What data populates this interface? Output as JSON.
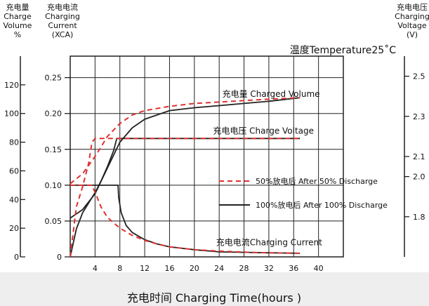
{
  "chart_data": {
    "type": "line",
    "annotation": "温度Temperature25˚C",
    "xlabel": "充电时间 Charging Time(hours )",
    "x_ticks": [
      4,
      8,
      12,
      16,
      20,
      24,
      28,
      32,
      36,
      40
    ],
    "xlim": [
      0,
      44
    ],
    "axes": {
      "volume": {
        "label_lines": [
          "充电量",
          "Charge",
          "Volume",
          "%"
        ],
        "ticks": [
          "0",
          "20",
          "40",
          "60",
          "80",
          "100",
          "120"
        ],
        "tick_values": [
          0,
          20,
          40,
          60,
          80,
          100,
          120
        ],
        "range": [
          0,
          140
        ]
      },
      "current": {
        "label_lines": [
          "充电电流",
          "Charging",
          "Current",
          "(XCA)"
        ],
        "ticks": [
          "0",
          "0.05",
          "0.10",
          "0.15",
          "0.20",
          "0.25"
        ],
        "tick_values": [
          0,
          0.05,
          0.1,
          0.15,
          0.2,
          0.25
        ],
        "range": [
          0,
          0.28
        ]
      },
      "voltage": {
        "label_lines": [
          "充电电压",
          "Charging",
          "Voltage",
          "(V)"
        ],
        "ticks": [
          "1.8",
          "2.0",
          "2.1",
          "2.3",
          "2.5"
        ],
        "tick_values": [
          1.8,
          2.0,
          2.1,
          2.3,
          2.5
        ],
        "range": [
          1.6,
          2.6
        ]
      }
    },
    "curve_labels": [
      {
        "text": "充电量 Charged Volume",
        "x": 24.5,
        "axis": "current",
        "y": 0.223
      },
      {
        "text": "充电电压 Charge Voltage",
        "x": 23,
        "axis": "current",
        "y": 0.172
      },
      {
        "text": "充电电流Charging Current",
        "x": 23.5,
        "axis": "current",
        "y": 0.016
      }
    ],
    "legend": [
      {
        "label": "50%放电后 After 50% Discharge",
        "style": "dashed",
        "color": "#e03030"
      },
      {
        "label": "100%放电后 After 100% Discharge",
        "style": "solid",
        "color": "#222222"
      }
    ],
    "series": [
      {
        "axis": "volume",
        "style": "solid",
        "color": "#222222",
        "x": [
          0,
          2,
          4,
          6,
          8,
          10,
          12,
          16,
          20,
          24,
          28,
          32,
          37
        ],
        "y": [
          27,
          33,
          44,
          62,
          80,
          90,
          96,
          102,
          104,
          105.5,
          107,
          108.5,
          111
        ]
      },
      {
        "axis": "volume",
        "style": "dashed",
        "color": "#e03030",
        "x": [
          0,
          2,
          4,
          6,
          8,
          10,
          12,
          16,
          20,
          24,
          28,
          32,
          37
        ],
        "y": [
          51,
          58,
          70,
          84,
          93,
          99,
          102,
          105,
          107,
          108,
          109,
          110,
          111
        ]
      },
      {
        "axis": "voltage",
        "style": "solid",
        "color": "#222222",
        "x": [
          0,
          1,
          2,
          3,
          4,
          5,
          6,
          7,
          7.5,
          8,
          10,
          15,
          20,
          25,
          30,
          37
        ],
        "y": [
          1.6,
          1.74,
          1.82,
          1.87,
          1.92,
          1.98,
          2.05,
          2.13,
          2.19,
          2.19,
          2.19,
          2.19,
          2.19,
          2.19,
          2.19,
          2.19
        ]
      },
      {
        "axis": "voltage",
        "style": "dashed",
        "color": "#e03030",
        "x": [
          0,
          1,
          2,
          3,
          3.5,
          4,
          6,
          10,
          15,
          20,
          25,
          30,
          37
        ],
        "y": [
          1.6,
          1.85,
          1.95,
          2.07,
          2.17,
          2.19,
          2.19,
          2.19,
          2.19,
          2.19,
          2.19,
          2.19,
          2.19
        ]
      },
      {
        "axis": "current",
        "style": "solid",
        "color": "#222222",
        "x": [
          0,
          0.5,
          2,
          4,
          6,
          7.7,
          7.8,
          8.2,
          9,
          10,
          12,
          14,
          16,
          20,
          24,
          30,
          37
        ],
        "y": [
          0.1,
          0.1,
          0.1,
          0.1,
          0.1,
          0.1,
          0.083,
          0.062,
          0.044,
          0.034,
          0.024,
          0.018,
          0.014,
          0.01,
          0.007,
          0.006,
          0.005
        ]
      },
      {
        "axis": "current",
        "style": "dashed",
        "color": "#e03030",
        "x": [
          0,
          1,
          2,
          3,
          3.5,
          4,
          5,
          6,
          8,
          10,
          12,
          14,
          16,
          20,
          24,
          30,
          37
        ],
        "y": [
          0.1,
          0.1,
          0.1,
          0.1,
          0.1,
          0.09,
          0.069,
          0.055,
          0.04,
          0.03,
          0.023,
          0.018,
          0.014,
          0.01,
          0.008,
          0.006,
          0.005
        ]
      }
    ]
  }
}
